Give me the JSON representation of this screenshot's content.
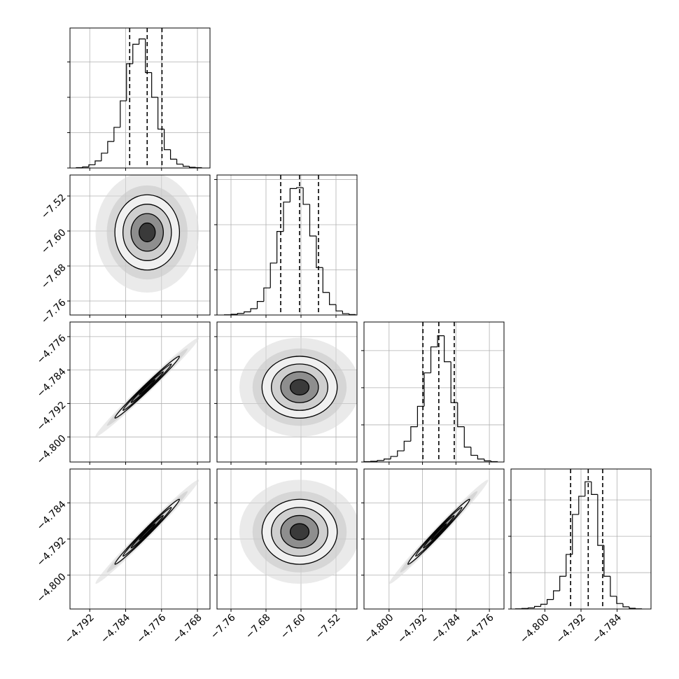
{
  "chart_data": {
    "type": "corner",
    "params": [
      {
        "lim": [
          -4.7964,
          -4.7652
        ],
        "ticks": [
          {
            "value": -4.792,
            "label": "−4.792"
          },
          {
            "value": -4.784,
            "label": "−4.784"
          },
          {
            "value": -4.776,
            "label": "−4.776"
          },
          {
            "value": -4.768,
            "label": "−4.768"
          }
        ],
        "mean": -4.7792,
        "sd": 0.0036,
        "hist": {
          "bins": [
            -4.795,
            -4.7936,
            -4.7922,
            -4.7908,
            -4.7894,
            -4.788,
            -4.7866,
            -4.7852,
            -4.7838,
            -4.7824,
            -4.781,
            -4.7796,
            -4.7782,
            -4.7768,
            -4.7754,
            -4.774,
            -4.7726,
            -4.7712,
            -4.7698,
            -4.7684,
            -4.767
          ],
          "counts": [
            10,
            30,
            90,
            200,
            420,
            750,
            1150,
            1900,
            2950,
            3500,
            3650,
            2700,
            2000,
            1100,
            520,
            250,
            110,
            50,
            20,
            10
          ]
        },
        "hist_ylim": [
          0,
          3960
        ],
        "hist_yticks": [
          0,
          1000,
          2000,
          3000
        ],
        "quantiles": [
          -4.7831,
          -4.7792,
          -4.7759
        ]
      },
      {
        "lim": [
          -7.792,
          -7.472
        ],
        "ticks": [
          {
            "value": -7.76,
            "label": "−7.76"
          },
          {
            "value": -7.68,
            "label": "−7.68"
          },
          {
            "value": -7.6,
            "label": "−7.60"
          },
          {
            "value": -7.52,
            "label": "−7.52"
          }
        ],
        "mean": -7.6032,
        "sd": 0.043,
        "hist": {
          "bins": [
            -7.775,
            -7.76,
            -7.745,
            -7.73,
            -7.715,
            -7.7,
            -7.685,
            -7.67,
            -7.655,
            -7.64,
            -7.625,
            -7.61,
            -7.595,
            -7.58,
            -7.565,
            -7.55,
            -7.535,
            -7.52,
            -7.505,
            -7.49,
            -7.475
          ],
          "counts": [
            5,
            15,
            35,
            70,
            140,
            300,
            600,
            1150,
            1850,
            2500,
            2800,
            2820,
            2450,
            1750,
            1050,
            500,
            230,
            90,
            30,
            10
          ]
        },
        "hist_ylim": [
          0,
          3100
        ],
        "hist_yticks": [
          0,
          1000,
          2000,
          3000
        ],
        "quantiles": [
          -7.6464,
          -7.6032,
          -7.56
        ]
      },
      {
        "lim": [
          -4.806,
          -4.7725
        ],
        "ticks": [
          {
            "value": -4.8,
            "label": "−4.800"
          },
          {
            "value": -4.792,
            "label": "−4.792"
          },
          {
            "value": -4.784,
            "label": "−4.784"
          },
          {
            "value": -4.776,
            "label": "−4.776"
          }
        ],
        "mean": -4.7881,
        "sd": 0.0037,
        "hist": {
          "bins": [
            -4.806,
            -4.8044,
            -4.8028,
            -4.8012,
            -4.7996,
            -4.798,
            -4.7964,
            -4.7948,
            -4.7932,
            -4.7916,
            -4.79,
            -4.7884,
            -4.7868,
            -4.7852,
            -4.7836,
            -4.782,
            -4.7804,
            -4.7788,
            -4.7772,
            -4.7756,
            -4.774
          ],
          "counts": [
            10,
            20,
            40,
            80,
            150,
            300,
            560,
            950,
            1500,
            2400,
            3100,
            3400,
            2700,
            1600,
            950,
            400,
            180,
            80,
            30,
            10
          ]
        },
        "hist_ylim": [
          0,
          3770
        ],
        "hist_yticks": [
          0,
          1000,
          2000,
          3000
        ],
        "quantiles": [
          -4.7919,
          -4.7881,
          -4.7844
        ]
      },
      {
        "lim": [
          -4.8075,
          -4.7765
        ],
        "ticks": [
          {
            "value": -4.8,
            "label": "−4.800"
          },
          {
            "value": -4.792,
            "label": "−4.792"
          },
          {
            "value": -4.784,
            "label": "−4.784"
          }
        ],
        "mean": -4.7904,
        "sd": 0.0036,
        "hist": {
          "bins": [
            -4.8065,
            -4.8051,
            -4.8037,
            -4.8023,
            -4.8009,
            -4.7995,
            -4.7981,
            -4.7967,
            -4.7953,
            -4.7939,
            -4.7925,
            -4.7911,
            -4.7897,
            -4.7883,
            -4.7869,
            -4.7855,
            -4.7841,
            -4.7827,
            -4.7813,
            -4.7799,
            -4.7785
          ],
          "counts": [
            5,
            15,
            30,
            70,
            130,
            260,
            500,
            900,
            1500,
            2600,
            3100,
            3500,
            3150,
            1750,
            900,
            350,
            150,
            60,
            20,
            5
          ]
        },
        "hist_ylim": [
          0,
          3850
        ],
        "hist_yticks": [
          0,
          1000,
          2000,
          3000
        ],
        "quantiles": [
          -4.7943,
          -4.7904,
          -4.7872
        ]
      }
    ],
    "pairs": [
      {
        "x": 0,
        "y": 1,
        "rho": 0.0
      },
      {
        "x": 0,
        "y": 2,
        "rho": 0.99
      },
      {
        "x": 1,
        "y": 2,
        "rho": 0.0
      },
      {
        "x": 0,
        "y": 3,
        "rho": 0.99
      },
      {
        "x": 1,
        "y": 3,
        "rho": 0.0
      },
      {
        "x": 2,
        "y": 3,
        "rho": 0.99
      }
    ],
    "levels": [
      2,
      1.5,
      1,
      0.5
    ],
    "grid": true
  }
}
